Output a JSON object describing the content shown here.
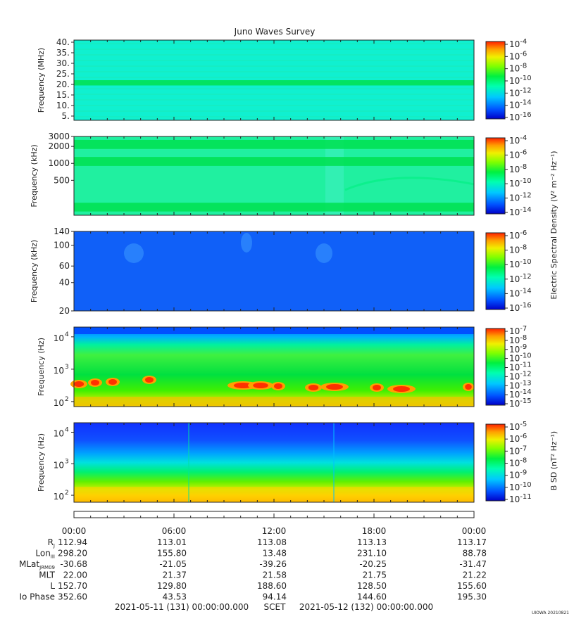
{
  "title": "Juno Waves Survey",
  "footer": {
    "start": "2021-05-11 (131) 00:00:00.000",
    "scet": "SCET",
    "end": "2021-05-12 (132) 00:00:00.000",
    "stamp": "UIOWA 20210821"
  },
  "colorbar_label_e": "Electric Spectral Density (V² m⁻² Hz⁻¹)",
  "colorbar_label_b": "B SD (nT² Hz⁻¹)",
  "colors": {
    "spectrum": [
      "#0000c8",
      "#0050ff",
      "#00c8ff",
      "#00ffc0",
      "#00f040",
      "#80ff00",
      "#f0f000",
      "#ffa000",
      "#ff2000"
    ]
  },
  "chart_data": [
    {
      "type": "heatmap",
      "name": "panel-1",
      "ylabel": "Frequency (MHz)",
      "yscale": "linear",
      "ylim": [
        3,
        41
      ],
      "yticks": [
        "5.",
        "10.",
        "15.",
        "20.",
        "25.",
        "30.",
        "35.",
        "40."
      ],
      "ytick_values": [
        5,
        10,
        15,
        20,
        25,
        30,
        35,
        40
      ],
      "cbar_ticks": [
        "10-4",
        "10-6",
        "10-8",
        "10-10",
        "10-12",
        "10-14",
        "10-16"
      ],
      "dominant_level": "1e-13",
      "bands": [
        {
          "freq_low": 19.5,
          "freq_high": 22.0,
          "level": "1e-12"
        }
      ]
    },
    {
      "type": "heatmap",
      "name": "panel-2",
      "ylabel": "Frequency (kHz)",
      "yscale": "log",
      "ylim": [
        120,
        3000
      ],
      "yticks": [
        "3000",
        "2000",
        "1000",
        "500"
      ],
      "ytick_values": [
        3000,
        2000,
        1000,
        500
      ],
      "cbar_ticks": [
        "10-4",
        "10-6",
        "10-8",
        "10-10",
        "10-12",
        "10-14"
      ],
      "dominant_level": "1e-12",
      "bands": [
        {
          "freq_low": 1800,
          "freq_high": 2600,
          "level": "1e-10"
        },
        {
          "freq_low": 900,
          "freq_high": 1300,
          "level": "1e-10"
        },
        {
          "freq_low": 140,
          "freq_high": 200,
          "level": "1e-10"
        }
      ]
    },
    {
      "type": "heatmap",
      "name": "panel-3",
      "ylabel": "Frequency (kHz)",
      "yscale": "log",
      "ylim": [
        20,
        140
      ],
      "yticks": [
        "140",
        "100",
        "60",
        "40",
        "20"
      ],
      "ytick_values": [
        140,
        100,
        60,
        40,
        20
      ],
      "cbar_ticks": [
        "10-6",
        "10-8",
        "10-10",
        "10-12",
        "10-14",
        "10-16"
      ],
      "dominant_level": "1e-15"
    },
    {
      "type": "heatmap",
      "name": "panel-4",
      "ylabel": "Frequency (Hz)",
      "yscale": "log",
      "ylim": [
        70,
        20000
      ],
      "yticks": [
        "10",
        "10",
        "10"
      ],
      "ytick_exponents": [
        "4",
        "3",
        "2"
      ],
      "ytick_values": [
        10000,
        1000,
        100
      ],
      "cbar_ticks": [
        "10-7",
        "10-8",
        "10-9",
        "10-10",
        "10-11",
        "10-12",
        "10-13",
        "10-14",
        "10-15"
      ],
      "dominant_level": "1e-11"
    },
    {
      "type": "heatmap",
      "name": "panel-5",
      "ylabel": "Frequency (Hz)",
      "yscale": "log",
      "ylim": [
        60,
        20000
      ],
      "yticks": [
        "10",
        "10",
        "10"
      ],
      "ytick_exponents": [
        "4",
        "3",
        "2"
      ],
      "ytick_values": [
        10000,
        1000,
        100
      ],
      "cbar_ticks": [
        "10-5",
        "10-6",
        "10-7",
        "10-8",
        "10-9",
        "10-10",
        "10-11"
      ],
      "dominant_level": "1e-9"
    }
  ],
  "xaxis": {
    "range_hours": [
      0,
      24
    ],
    "ticks": [
      "00:00",
      "06:00",
      "12:00",
      "18:00",
      "00:00"
    ],
    "tick_hours": [
      0,
      6,
      12,
      18,
      24
    ]
  },
  "ephemeris": [
    {
      "label": "R",
      "sub": "J",
      "values": [
        "112.94",
        "113.01",
        "113.08",
        "113.13",
        "113.17"
      ]
    },
    {
      "label": "Lon",
      "sub": "III",
      "values": [
        "298.20",
        "155.80",
        "13.48",
        "231.10",
        "88.78"
      ]
    },
    {
      "label": "MLat",
      "sub": "JRM09",
      "values": [
        "-30.68",
        "-21.05",
        "-39.26",
        "-20.25",
        "-31.47"
      ]
    },
    {
      "label": "MLT",
      "sub": "",
      "values": [
        "22.00",
        "21.37",
        "21.58",
        "21.75",
        "21.22"
      ]
    },
    {
      "label": "L",
      "sub": "",
      "values": [
        "152.70",
        "129.80",
        "188.60",
        "128.50",
        "155.60"
      ]
    },
    {
      "label": "Io Phase",
      "sub": "",
      "values": [
        "352.60",
        "43.53",
        "94.14",
        "144.60",
        "195.30"
      ]
    }
  ]
}
